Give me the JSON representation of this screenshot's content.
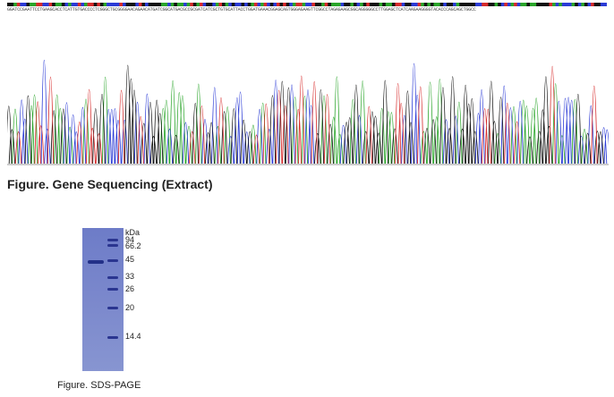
{
  "sequence": {
    "text": "GGATCCGAATTCCTGAAGCACCTCATTGTGACCCCTCGGGCTGCGGGGAACAGAACATGATCGGCATGACGCCGCGATCATCGCTGTGCATTACCTGGATGAAACGGAGCAGTGGGAGAAGTTCGGCCTAGAGAAGCGGCAGGGGGCCTTGGAGCTCATCAAGAAGGGGTACACCCAGCAGCTGGCC"
  },
  "chromatogram": {
    "colors": {
      "A": "#2aa52a",
      "C": "#2b3bd6",
      "G": "#111111",
      "T": "#d62b2b"
    }
  },
  "figures": {
    "sequencing_caption": "Figure. Gene Sequencing (Extract)",
    "sds_caption": "Figure. SDS-PAGE"
  },
  "gel": {
    "unit_label": "kDa",
    "markers": [
      "94",
      "66.2",
      "45",
      "33",
      "26",
      "20",
      "14.4"
    ],
    "sample_band_kda": 45
  }
}
